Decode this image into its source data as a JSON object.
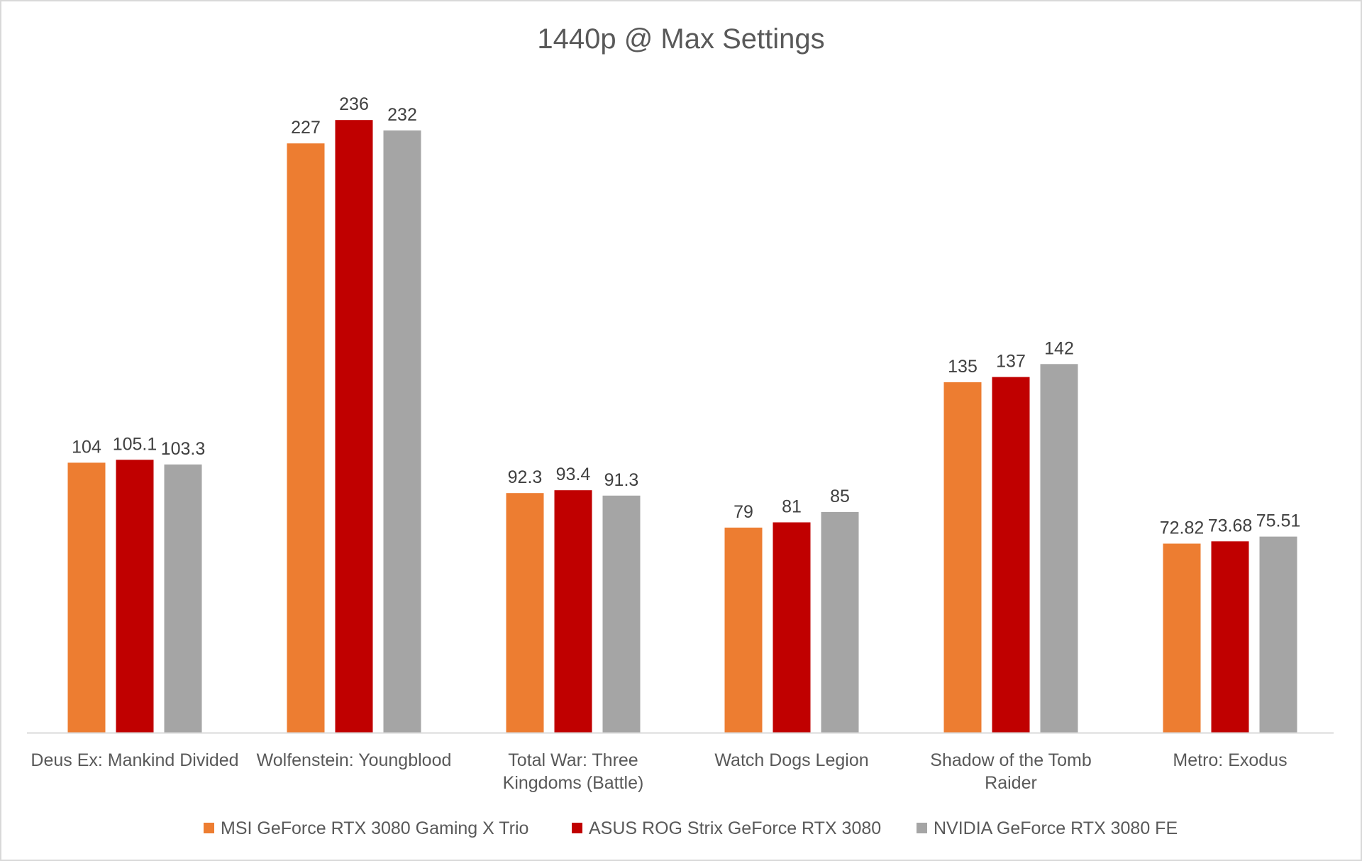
{
  "chart_data": {
    "type": "bar",
    "title": "1440p @ Max Settings",
    "xlabel": "",
    "ylabel": "",
    "ylim": [
      0,
      250
    ],
    "grid": false,
    "legend_position": "bottom",
    "categories": [
      [
        "Deus Ex: Mankind Divided"
      ],
      [
        "Wolfenstein: Youngblood"
      ],
      [
        "Total War: Three",
        "Kingdoms (Battle)"
      ],
      [
        "Watch Dogs Legion"
      ],
      [
        "Shadow of the Tomb",
        "Raider"
      ],
      [
        "Metro: Exodus"
      ]
    ],
    "series": [
      {
        "name": "MSI GeForce RTX 3080 Gaming X Trio",
        "color": "#ed7d31",
        "values": [
          104,
          227,
          92.3,
          79,
          135,
          72.82
        ]
      },
      {
        "name": "ASUS ROG Strix GeForce RTX 3080",
        "color": "#c00000",
        "values": [
          105.1,
          236,
          93.4,
          81,
          137,
          73.68
        ]
      },
      {
        "name": "NVIDIA GeForce RTX 3080 FE",
        "color": "#a5a5a5",
        "values": [
          103.3,
          232,
          91.3,
          85,
          142,
          75.51
        ]
      }
    ],
    "axis_color": "#d9d9d9"
  }
}
